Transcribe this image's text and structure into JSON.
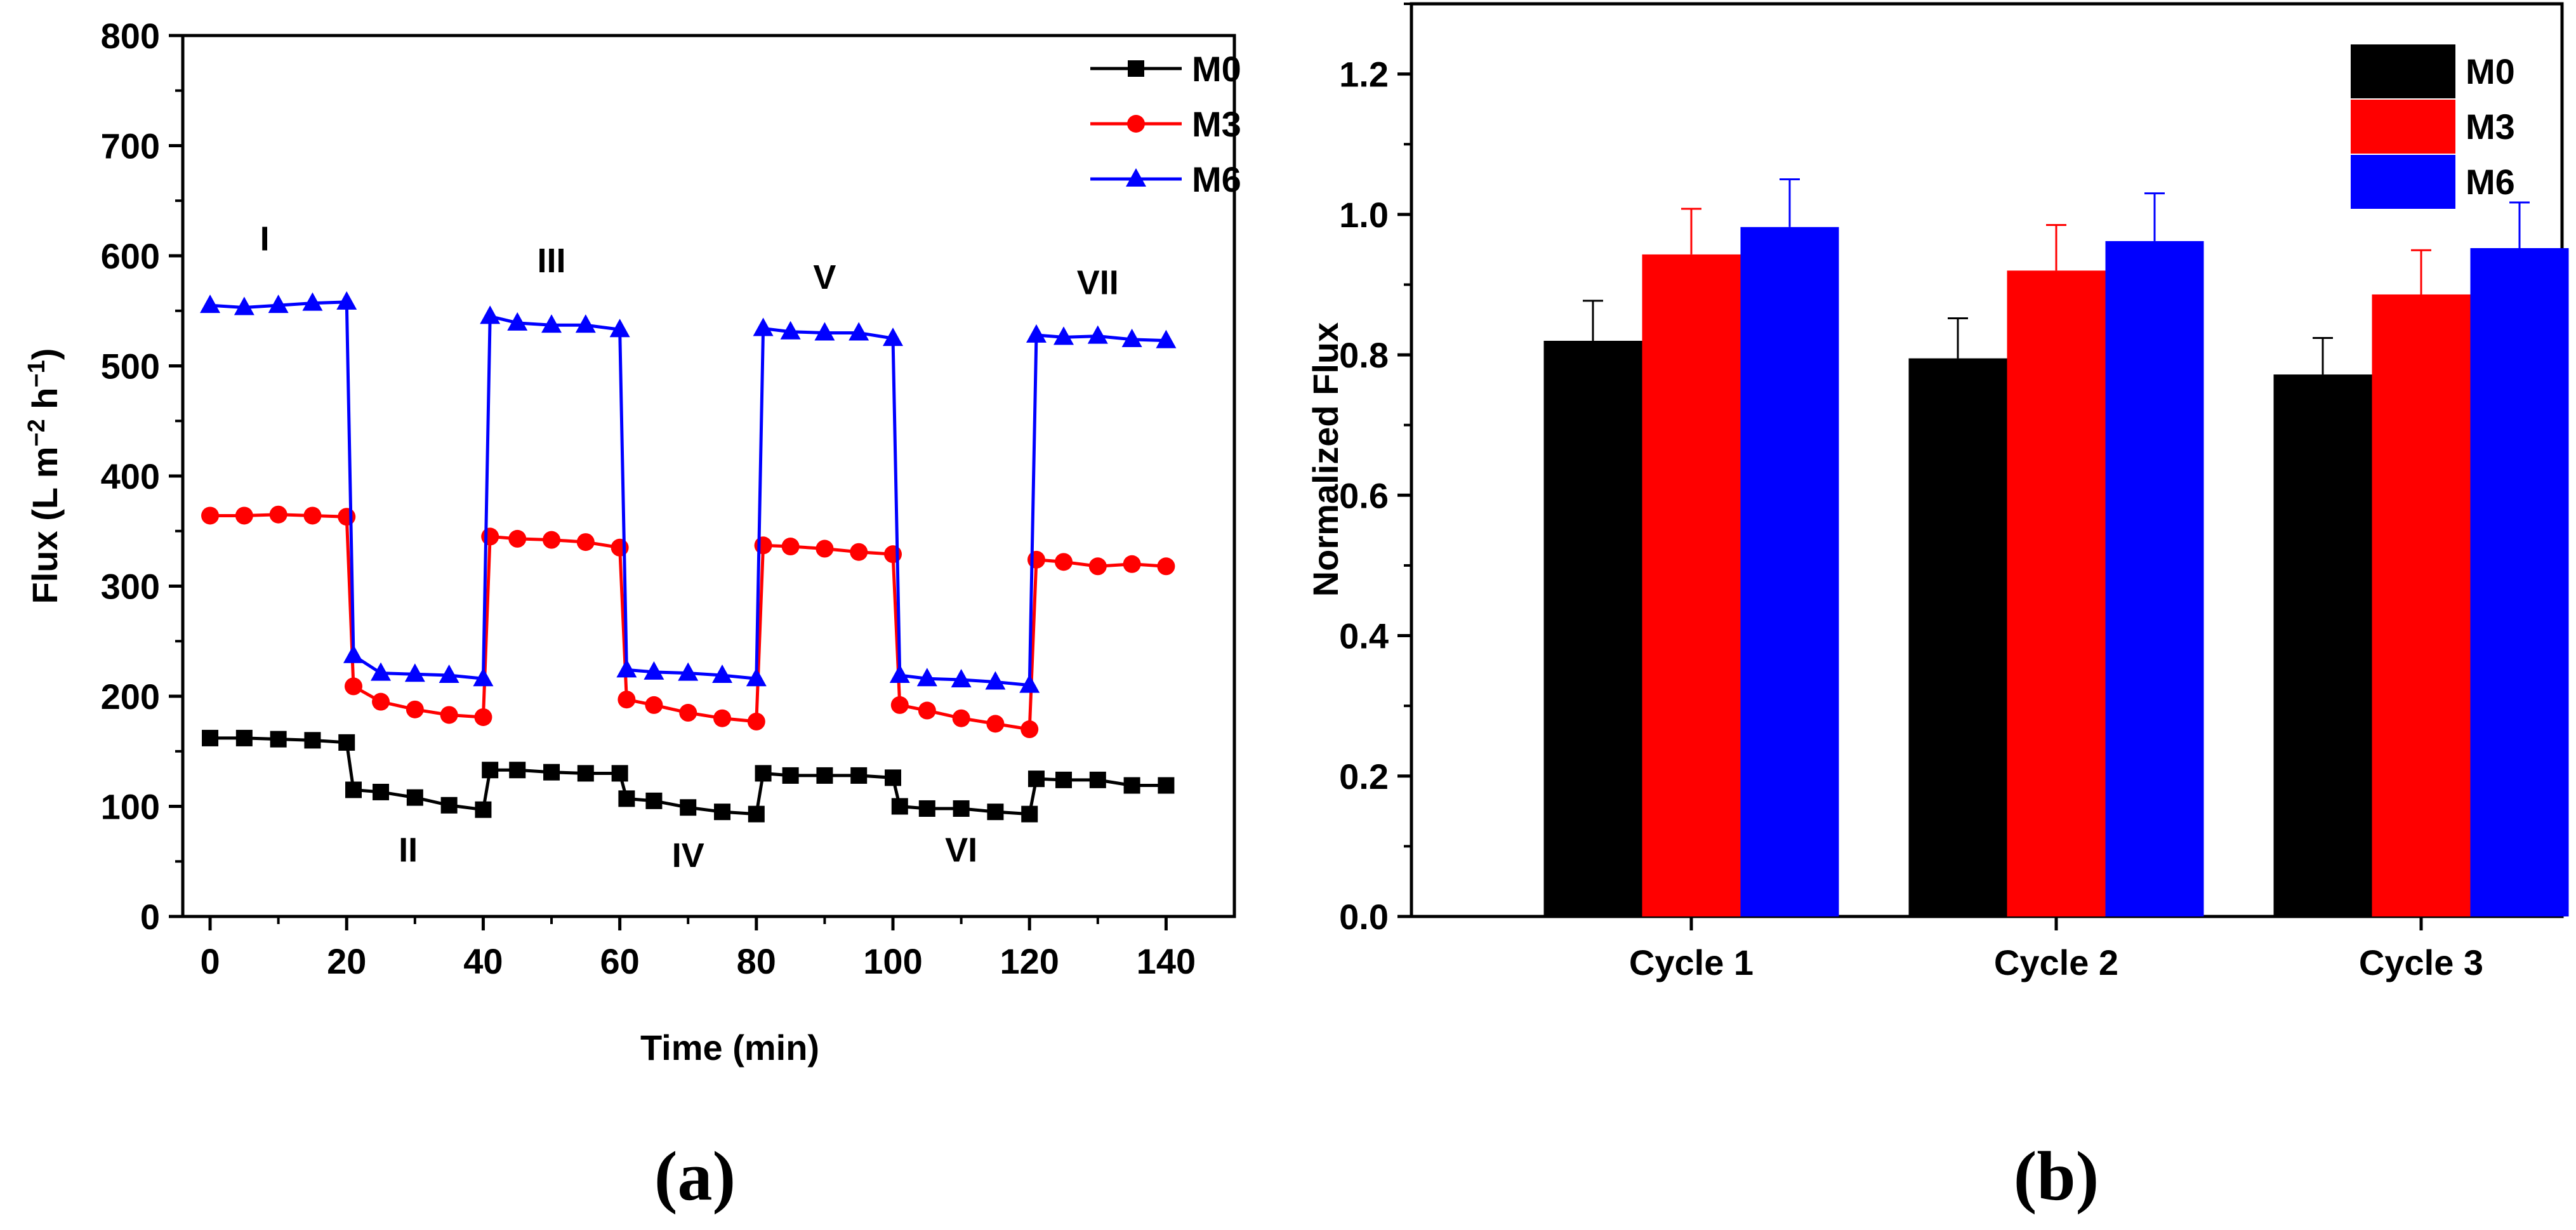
{
  "chart_data": [
    {
      "panel": "(a)",
      "type": "line",
      "xlabel": "Time (min)",
      "ylabel_main": "Flux (L m",
      "ylabel_sup1": "−2",
      "ylabel_mid": " h",
      "ylabel_sup2": "−1",
      "ylabel_end": ")",
      "xlim": [
        -4,
        150
      ],
      "ylim": [
        0,
        800
      ],
      "xticks": [
        0,
        20,
        40,
        60,
        80,
        100,
        120,
        140
      ],
      "yticks": [
        0,
        100,
        200,
        300,
        400,
        500,
        600,
        700,
        800
      ],
      "legend_position": "top-right",
      "stage_labels": [
        {
          "text": "I",
          "x": 8,
          "y": 605
        },
        {
          "text": "II",
          "x": 29,
          "y": 50
        },
        {
          "text": "III",
          "x": 50,
          "y": 585
        },
        {
          "text": "IV",
          "x": 70,
          "y": 45
        },
        {
          "text": "V",
          "x": 90,
          "y": 570
        },
        {
          "text": "VI",
          "x": 110,
          "y": 50
        },
        {
          "text": "VII",
          "x": 130,
          "y": 565
        }
      ],
      "series": [
        {
          "name": "M0",
          "color": "#000000",
          "marker": "square",
          "x": [
            0,
            5,
            10,
            15,
            20,
            21,
            25,
            30,
            35,
            40,
            41,
            45,
            50,
            55,
            60,
            61,
            65,
            70,
            75,
            80,
            81,
            85,
            90,
            95,
            100,
            101,
            105,
            110,
            115,
            120,
            121,
            125,
            130,
            135,
            140
          ],
          "y": [
            162,
            162,
            161,
            160,
            158,
            115,
            113,
            108,
            101,
            97,
            133,
            133,
            131,
            130,
            130,
            107,
            105,
            99,
            95,
            93,
            130,
            128,
            128,
            128,
            126,
            100,
            98,
            98,
            95,
            93,
            125,
            124,
            124,
            119,
            119
          ]
        },
        {
          "name": "M3",
          "color": "#ff0000",
          "marker": "circle",
          "x": [
            0,
            5,
            10,
            15,
            20,
            21,
            25,
            30,
            35,
            40,
            41,
            45,
            50,
            55,
            60,
            61,
            65,
            70,
            75,
            80,
            81,
            85,
            90,
            95,
            100,
            101,
            105,
            110,
            115,
            120,
            121,
            125,
            130,
            135,
            140
          ],
          "y": [
            364,
            364,
            365,
            364,
            363,
            209,
            195,
            188,
            183,
            181,
            345,
            343,
            342,
            340,
            335,
            197,
            192,
            185,
            180,
            177,
            337,
            336,
            334,
            331,
            329,
            192,
            187,
            180,
            175,
            170,
            324,
            322,
            318,
            320,
            318
          ]
        },
        {
          "name": "M6",
          "color": "#0000ff",
          "marker": "triangle",
          "x": [
            0,
            5,
            10,
            15,
            20,
            21,
            25,
            30,
            35,
            40,
            41,
            45,
            50,
            55,
            60,
            61,
            65,
            70,
            75,
            80,
            81,
            85,
            90,
            95,
            100,
            101,
            105,
            110,
            115,
            120,
            121,
            125,
            130,
            135,
            140
          ],
          "y": [
            555,
            553,
            555,
            557,
            558,
            237,
            221,
            220,
            219,
            216,
            545,
            539,
            537,
            537,
            533,
            224,
            222,
            221,
            219,
            216,
            534,
            531,
            530,
            530,
            525,
            219,
            216,
            215,
            213,
            210,
            528,
            526,
            527,
            524,
            523
          ]
        }
      ]
    },
    {
      "panel": "(b)",
      "type": "bar",
      "ylabel": "Normalized Flux",
      "xlabel": "",
      "categories": [
        "Cycle 1",
        "Cycle 2",
        "Cycle 3"
      ],
      "ylim": [
        0,
        1.3
      ],
      "yticks": [
        "0.0",
        "0.2",
        "0.4",
        "0.6",
        "0.8",
        "1.0",
        "1.2"
      ],
      "legend_position": "top-right",
      "series": [
        {
          "name": "M0",
          "color": "#000000",
          "values": [
            0.82,
            0.795,
            0.772
          ],
          "errors": [
            0.057,
            0.057,
            0.052
          ]
        },
        {
          "name": "M3",
          "color": "#ff0000",
          "values": [
            0.943,
            0.92,
            0.886
          ],
          "errors": [
            0.065,
            0.065,
            0.063
          ]
        },
        {
          "name": "M6",
          "color": "#0000ff",
          "values": [
            0.982,
            0.962,
            0.952
          ],
          "errors": [
            0.068,
            0.068,
            0.065
          ]
        }
      ]
    }
  ]
}
